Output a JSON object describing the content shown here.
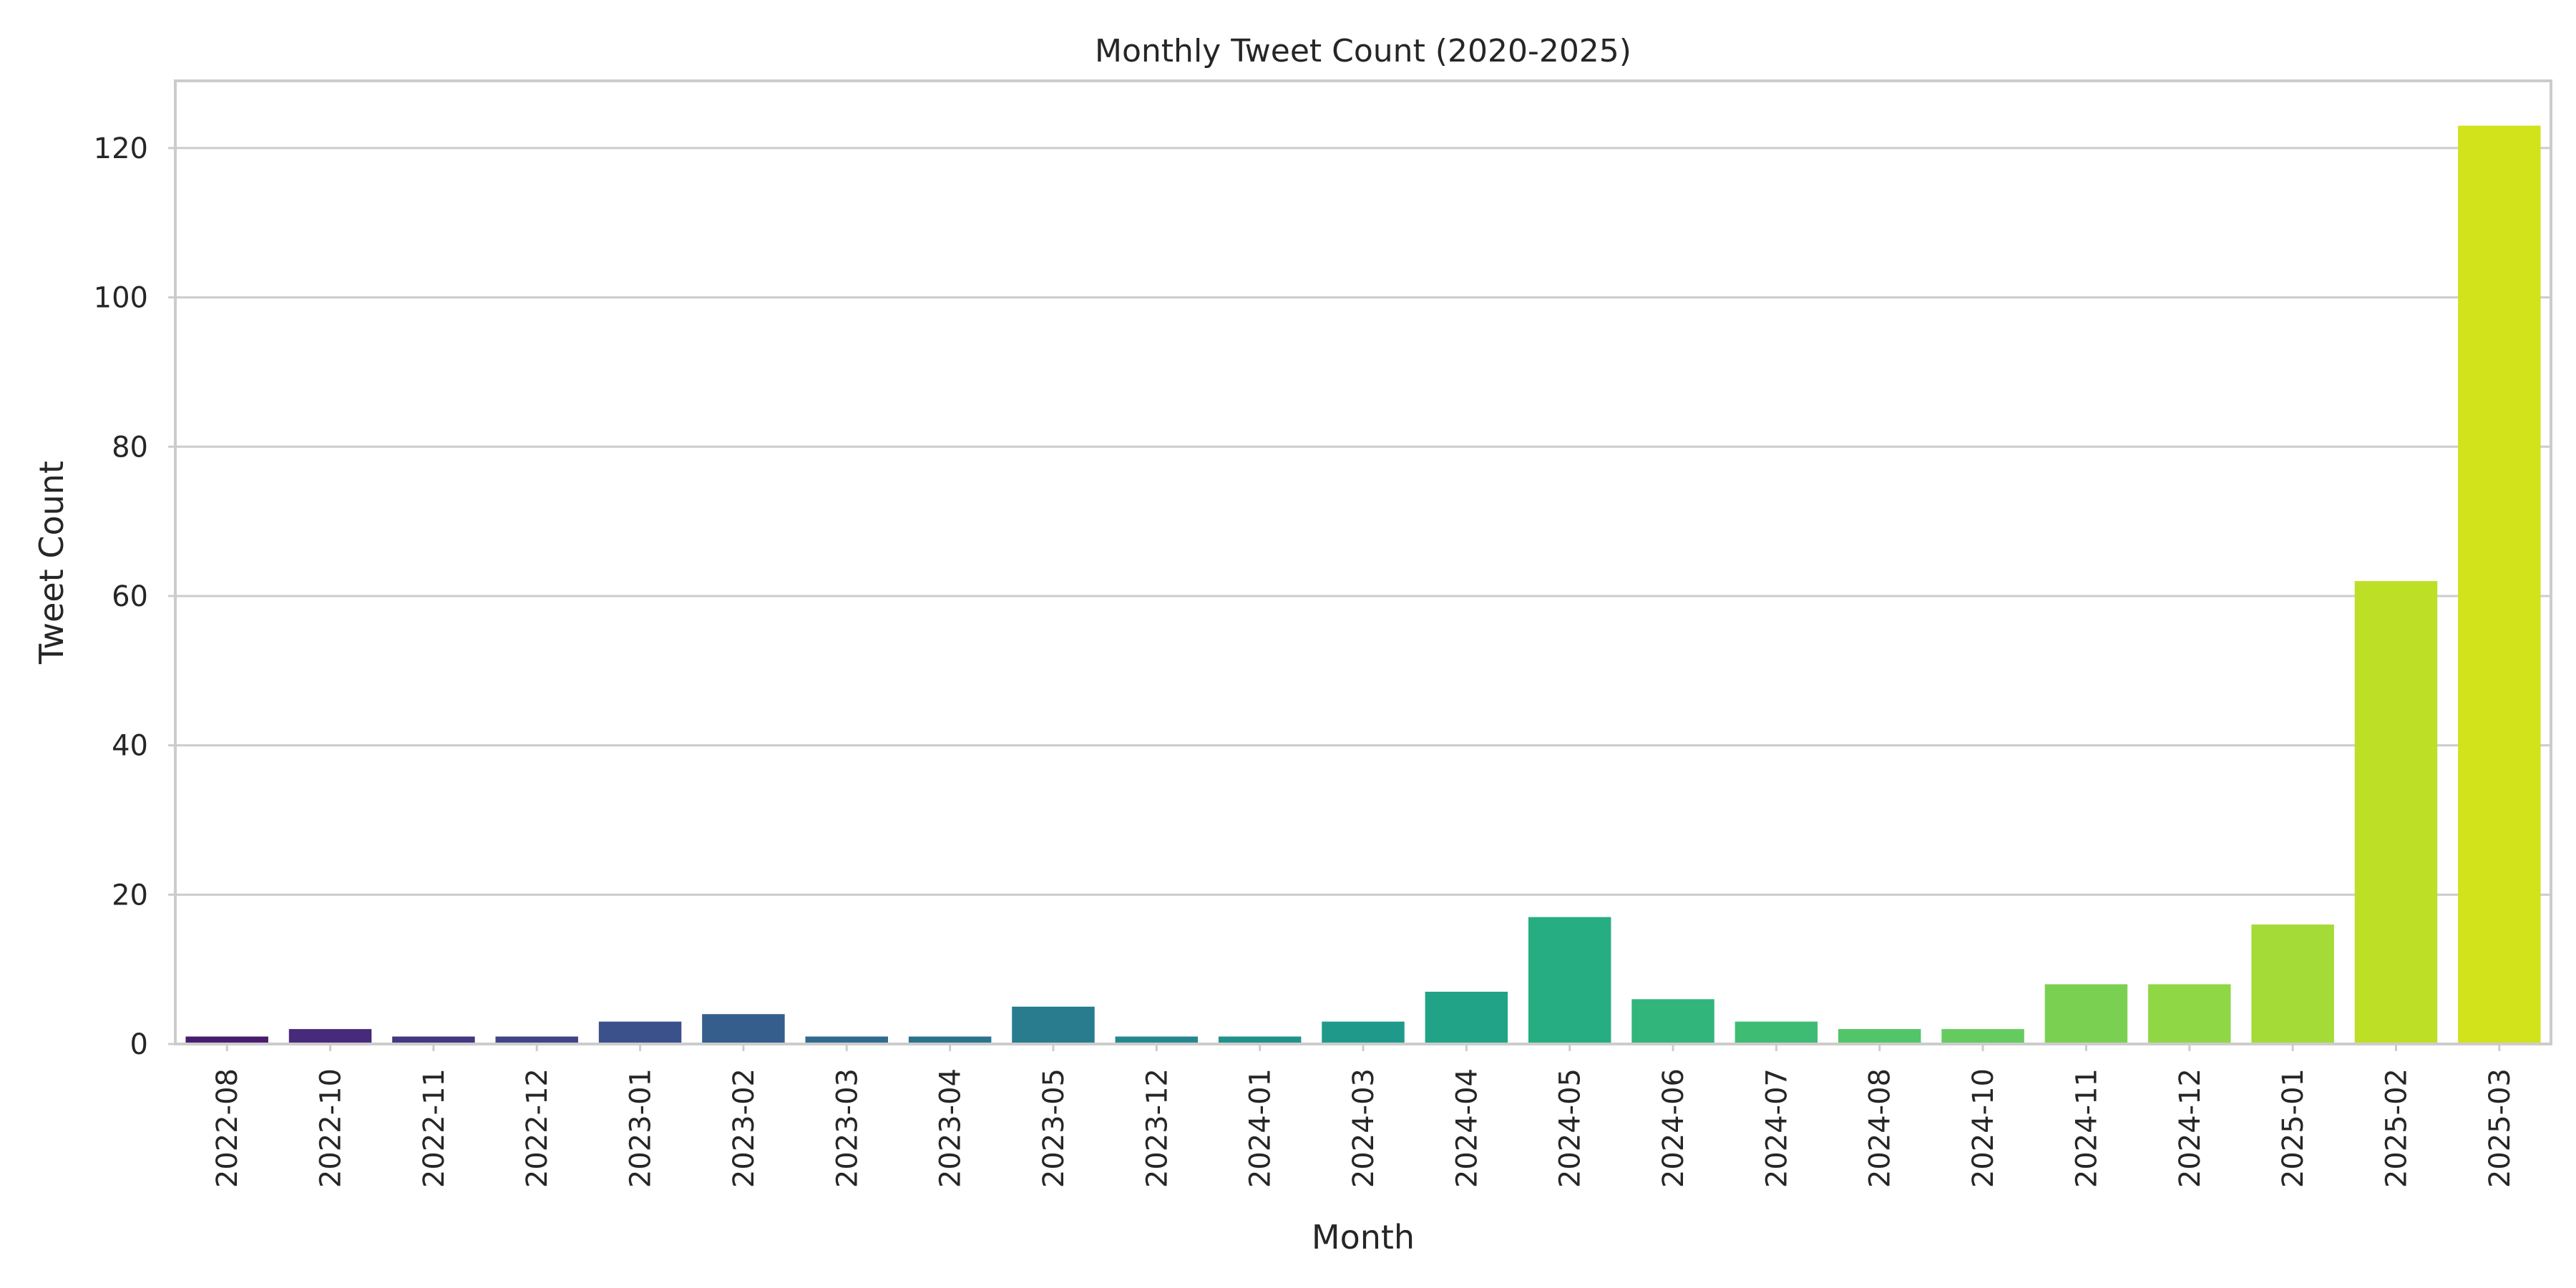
{
  "chart_data": {
    "type": "bar",
    "title": "Monthly Tweet Count (2020-2025)",
    "xlabel": "Month",
    "ylabel": "Tweet Count",
    "ylim": [
      0,
      129
    ],
    "yticks": [
      0,
      20,
      40,
      60,
      80,
      100,
      120
    ],
    "grid": "horizontal",
    "legend": "none",
    "categories": [
      "2022-08",
      "2022-10",
      "2022-11",
      "2022-12",
      "2023-01",
      "2023-02",
      "2023-03",
      "2023-04",
      "2023-05",
      "2023-12",
      "2024-01",
      "2024-03",
      "2024-04",
      "2024-05",
      "2024-06",
      "2024-07",
      "2024-08",
      "2024-10",
      "2024-11",
      "2024-12",
      "2025-01",
      "2025-02",
      "2025-03"
    ],
    "values": [
      1,
      2,
      1,
      1,
      3,
      4,
      1,
      1,
      5,
      1,
      1,
      3,
      7,
      17,
      6,
      3,
      2,
      2,
      8,
      8,
      16,
      62,
      123
    ],
    "colors": [
      "#481c6e",
      "#472a7a",
      "#453781",
      "#414487",
      "#3b518b",
      "#355e8d",
      "#306a8e",
      "#2c738e",
      "#287c8e",
      "#24878e",
      "#21918c",
      "#1f9a8a",
      "#20a386",
      "#26ad81",
      "#31b57b",
      "#3fbc73",
      "#52c569",
      "#65cb5e",
      "#7ad151",
      "#8fd744",
      "#a5db36",
      "#bddf26",
      "#d2e21b"
    ]
  }
}
